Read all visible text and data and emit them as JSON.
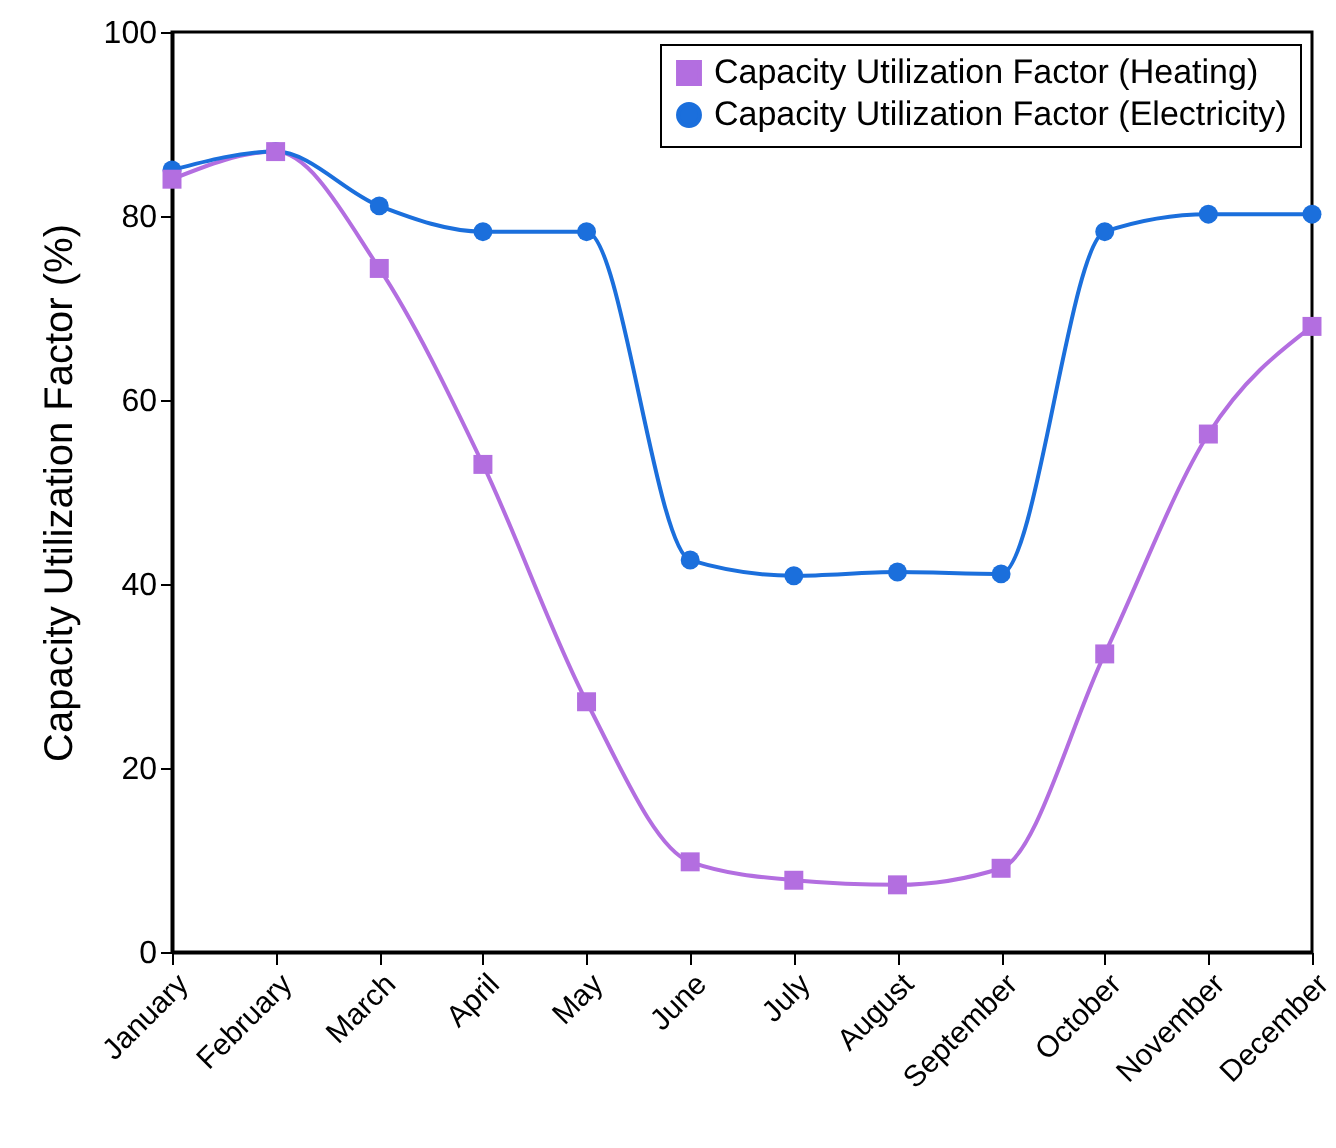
{
  "chart_data": {
    "type": "line",
    "ylabel": "Capacity Utilization Factor (%)",
    "categories": [
      "January",
      "February",
      "March",
      "April",
      "May",
      "June",
      "July",
      "August",
      "September",
      "October",
      "November",
      "December"
    ],
    "series": [
      {
        "name": "Capacity Utilization Factor (Heating)",
        "color": "#b36ee0",
        "marker": "square",
        "values": [
          84,
          87,
          74.3,
          53,
          27.2,
          9.8,
          7.8,
          7.3,
          9.1,
          32.4,
          56.3,
          68
        ]
      },
      {
        "name": "Capacity Utilization Factor (Electricity)",
        "color": "#1b6fdc",
        "marker": "circle",
        "values": [
          85,
          87,
          81.1,
          78.3,
          78.3,
          42.6,
          40.9,
          41.3,
          41.1,
          78.3,
          80.2,
          80.2
        ]
      }
    ],
    "ylim": [
      0,
      100
    ],
    "yticks": [
      0,
      20,
      40,
      60,
      80,
      100
    ],
    "grid": false,
    "legend": "top right",
    "line_style": "solid"
  }
}
